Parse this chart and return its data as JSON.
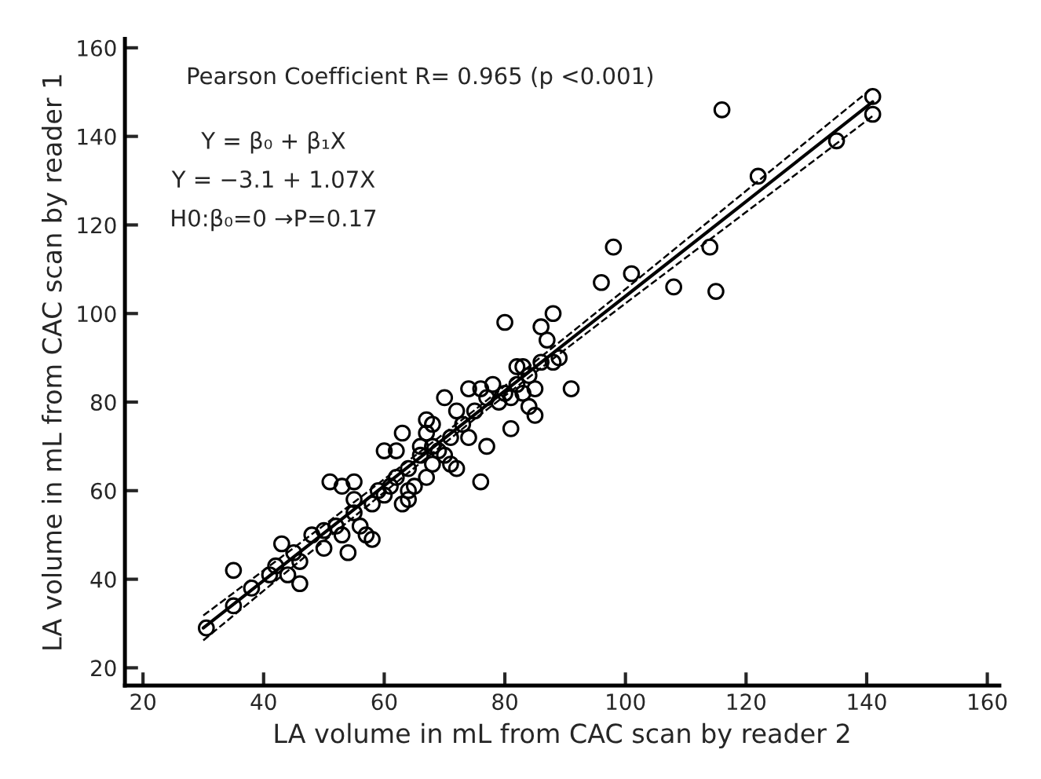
{
  "chart_data": {
    "type": "scatter",
    "xlabel": "LA volume in mL from CAC scan by reader 2",
    "ylabel": "LA volume in mL from CAC scan by reader 1",
    "xlim": [
      17,
      162
    ],
    "ylim": [
      16,
      162
    ],
    "xticks": [
      20,
      40,
      60,
      80,
      100,
      120,
      140,
      160
    ],
    "yticks": [
      20,
      40,
      60,
      80,
      100,
      120,
      140,
      160
    ],
    "grid": false,
    "annotations": [
      "Pearson Coefficient R= 0.965 (p <0.001)",
      "Y = β₀ + β₁X",
      "Y = −3.1 + 1.07X",
      "H0:β₀=0 →P=0.17"
    ],
    "series": [
      {
        "color": "#000000",
        "marker": "circle",
        "x": [
          30.5,
          35,
          35,
          38,
          41,
          42,
          43,
          44,
          45,
          46,
          46,
          48,
          50,
          50,
          51,
          52,
          53,
          53,
          54,
          55,
          55,
          55,
          56,
          57,
          58,
          58,
          59,
          60,
          60,
          61,
          62,
          62,
          63,
          63,
          64,
          64,
          64,
          65,
          66,
          66,
          67,
          67,
          67,
          68,
          68,
          68,
          69,
          70,
          70,
          71,
          71,
          72,
          72,
          73,
          74,
          74,
          75,
          76,
          76,
          77,
          77,
          78,
          79,
          80,
          80,
          81,
          81,
          82,
          82,
          83,
          83,
          84,
          84,
          85,
          85,
          86,
          86,
          87,
          88,
          88,
          89,
          91,
          96,
          98,
          101,
          108,
          114,
          115,
          116,
          122,
          135,
          141,
          141
        ],
        "values": [
          29,
          34,
          42,
          38,
          41,
          43,
          48,
          41,
          46,
          44,
          39,
          50,
          51,
          47,
          62,
          52,
          50,
          61,
          46,
          62,
          55,
          58,
          52,
          50,
          49,
          57,
          60,
          59,
          69,
          61,
          69,
          63,
          57,
          73,
          60,
          58,
          65,
          61,
          68,
          70,
          63,
          73,
          76,
          70,
          66,
          75,
          69,
          68,
          81,
          66,
          72,
          78,
          65,
          75,
          72,
          83,
          78,
          83,
          62,
          70,
          81,
          84,
          80,
          82,
          98,
          74,
          81,
          88,
          84,
          82,
          88,
          79,
          86,
          77,
          83,
          89,
          97,
          94,
          89,
          100,
          90,
          83,
          107,
          115,
          109,
          106,
          115,
          105,
          146,
          131,
          139,
          149,
          145
        ]
      },
      {
        "type": "line",
        "color": "#000000",
        "line_style": "solid",
        "marker": "none",
        "x": [
          30,
          50,
          75,
          100,
          120,
          141
        ],
        "values": [
          29.0,
          50.4,
          77.2,
          103.9,
          125.3,
          147.8
        ]
      },
      {
        "type": "line",
        "color": "#000000",
        "line_style": "dashed",
        "marker": "none",
        "x": [
          30,
          50,
          75,
          100,
          120,
          141
        ],
        "values": [
          26.2,
          48.6,
          76.2,
          102.3,
          122.9,
          144.6
        ]
      },
      {
        "type": "line",
        "color": "#000000",
        "line_style": "dashed",
        "marker": "none",
        "x": [
          30,
          50,
          75,
          100,
          120,
          141
        ],
        "values": [
          31.8,
          52.2,
          78.2,
          105.5,
          127.7,
          151.0
        ]
      }
    ]
  }
}
